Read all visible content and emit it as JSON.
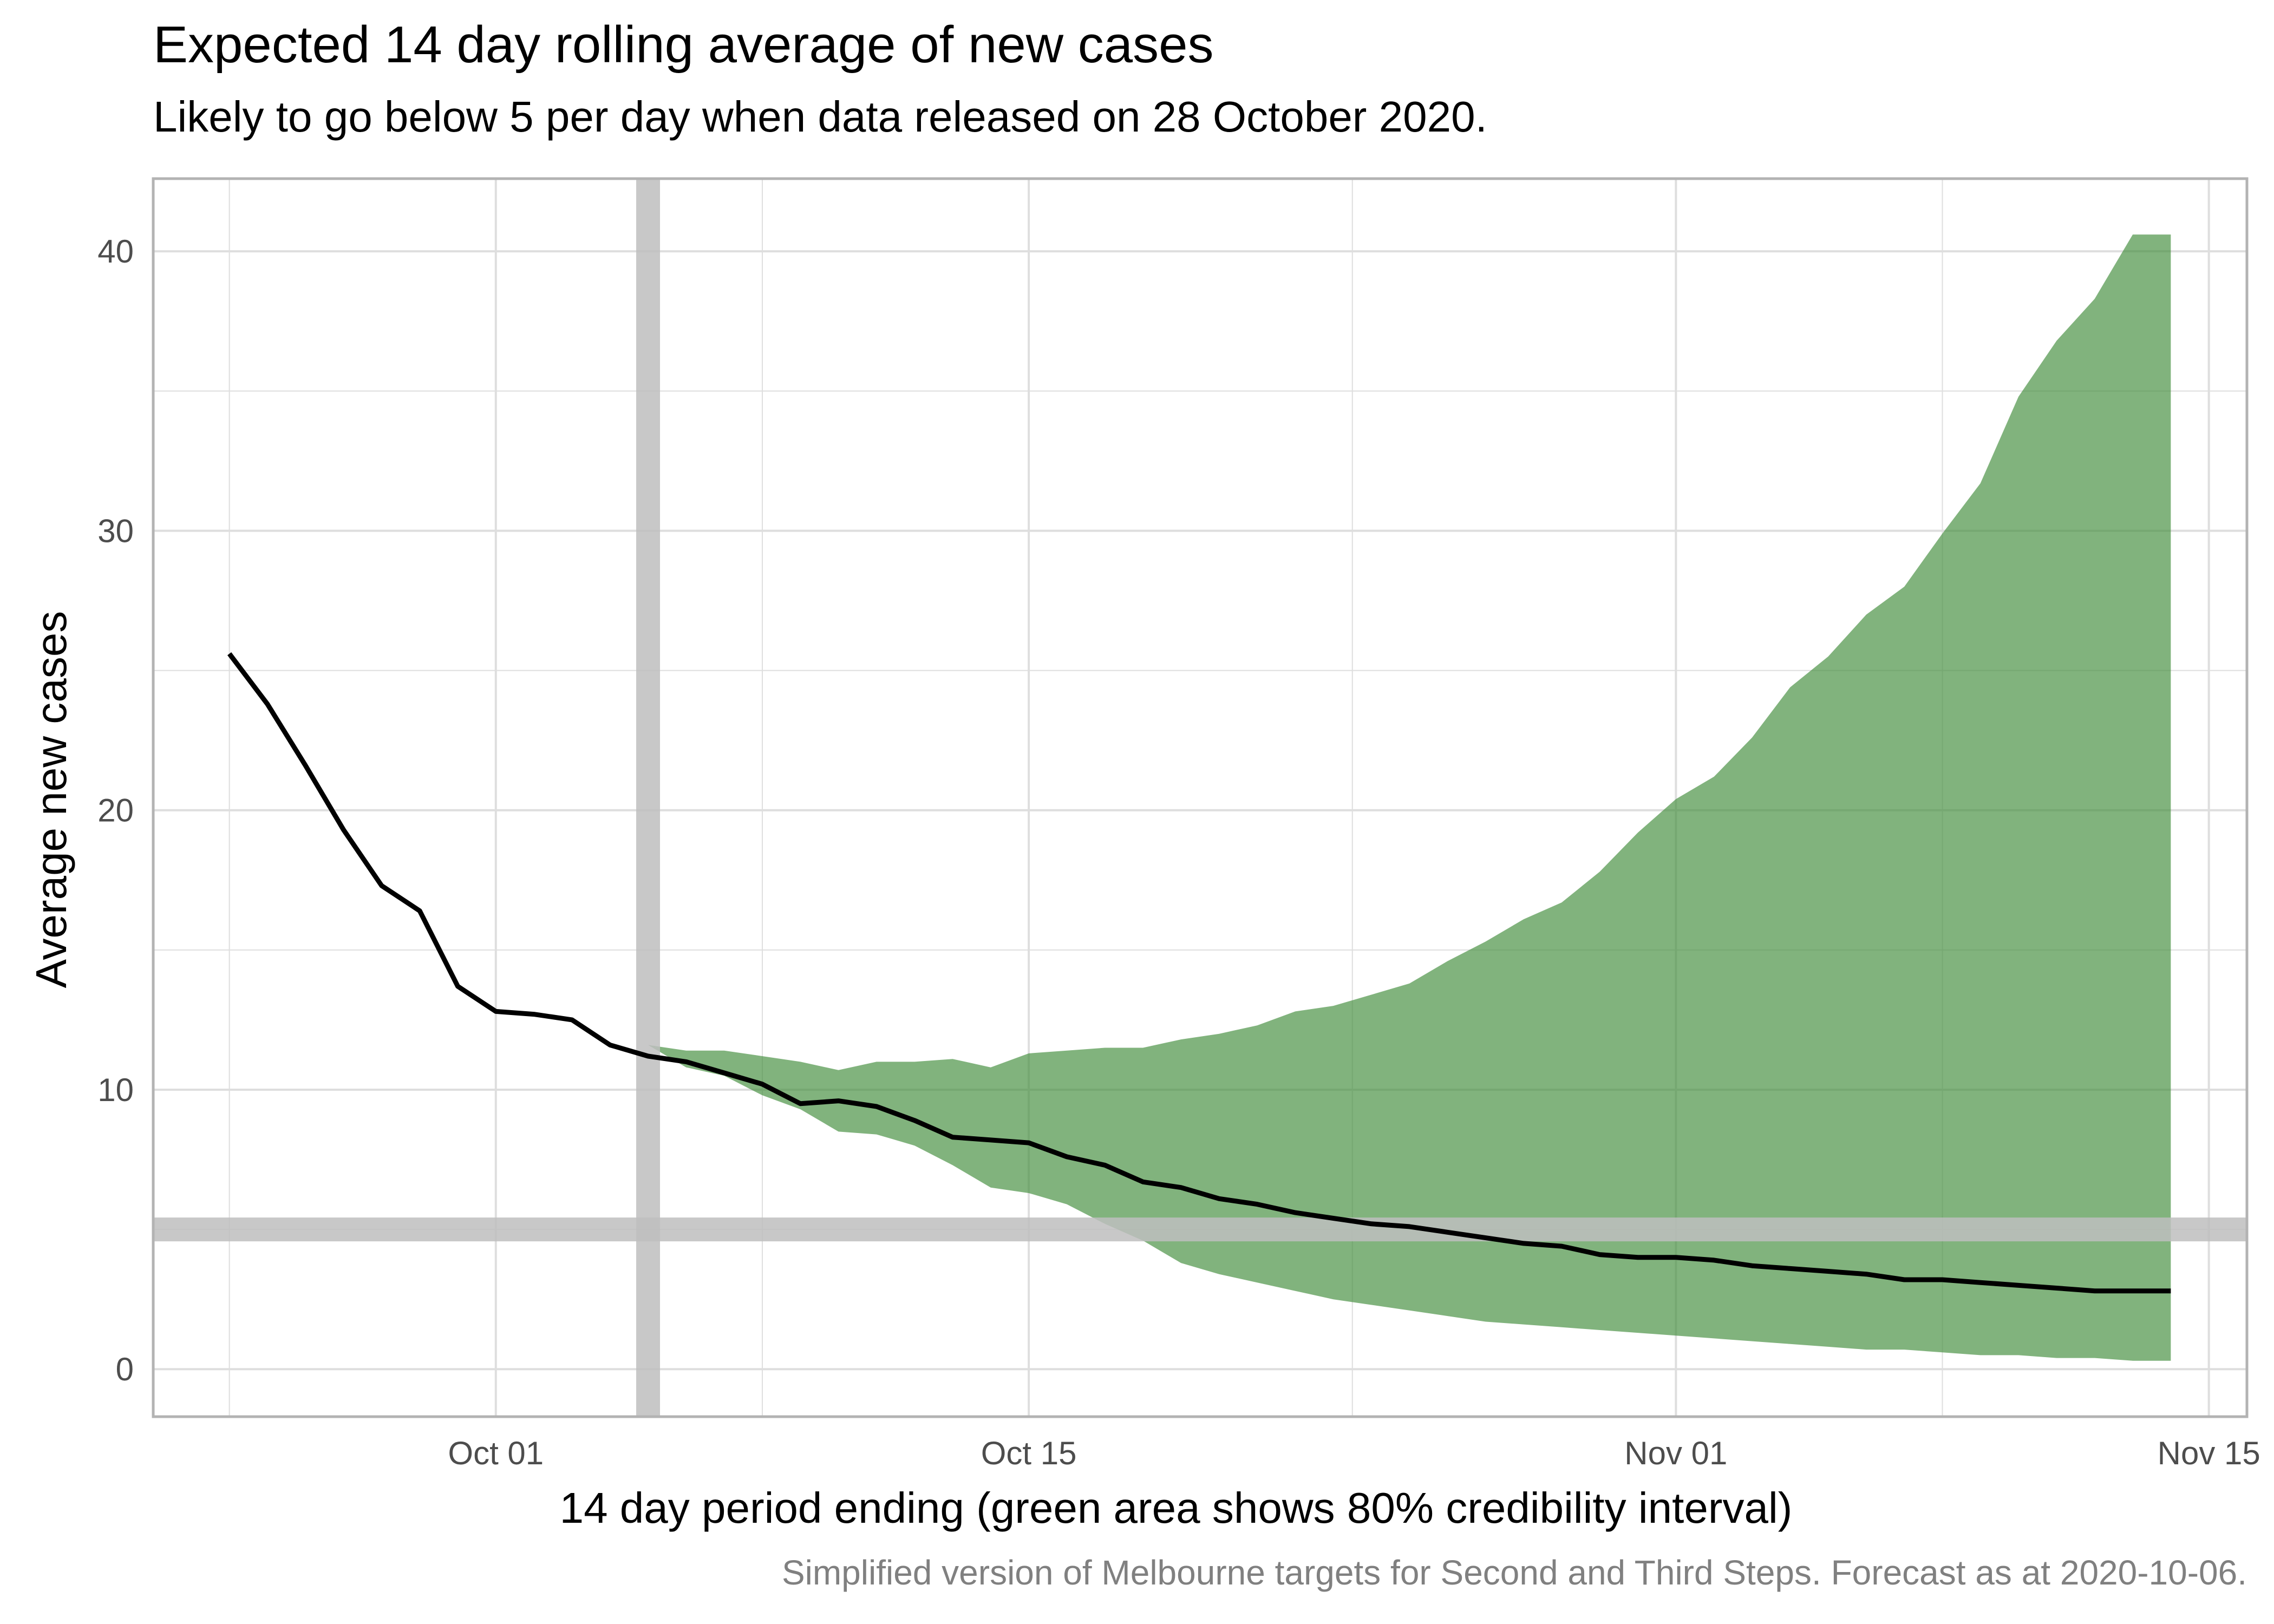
{
  "chart_data": {
    "type": "area",
    "title": "Expected 14 day rolling average of new cases",
    "subtitle": "Likely to go below 5 per day when data released on 28 October 2020.",
    "xlabel": "14 day period ending (green area shows 80% credibility interval)",
    "ylabel": "Average new cases",
    "caption": "Simplified version of Melbourne targets for Second and Third Steps. Forecast as at 2020-10-06.",
    "x_ticks": [
      "Oct 01",
      "Oct 15",
      "Nov 01",
      "Nov 15"
    ],
    "y_ticks": [
      "0",
      "10",
      "20",
      "30",
      "40"
    ],
    "xlim": [
      "2020-09-22",
      "2020-11-16"
    ],
    "ylim": [
      -1.7,
      42.6
    ],
    "grid": true,
    "colors": {
      "band": "#3d8b37",
      "line": "#000000",
      "reference": "#bebebe",
      "grid": "#dedede",
      "border": "#b3b3b3"
    },
    "reference_lines": {
      "x": "2020-10-05",
      "y": 5
    },
    "series": [
      {
        "type": "line",
        "x": [
          "2020-09-24",
          "2020-09-25",
          "2020-09-26",
          "2020-09-27",
          "2020-09-28",
          "2020-09-29",
          "2020-09-30",
          "2020-10-01",
          "2020-10-02",
          "2020-10-03",
          "2020-10-04",
          "2020-10-05",
          "2020-10-06",
          "2020-10-07",
          "2020-10-08",
          "2020-10-09",
          "2020-10-10",
          "2020-10-11",
          "2020-10-12",
          "2020-10-13",
          "2020-10-14",
          "2020-10-15",
          "2020-10-16",
          "2020-10-17",
          "2020-10-18",
          "2020-10-19",
          "2020-10-20",
          "2020-10-21",
          "2020-10-22",
          "2020-10-23",
          "2020-10-24",
          "2020-10-25",
          "2020-10-26",
          "2020-10-27",
          "2020-10-28",
          "2020-10-29",
          "2020-10-30",
          "2020-10-31",
          "2020-11-01",
          "2020-11-02",
          "2020-11-03",
          "2020-11-04",
          "2020-11-05",
          "2020-11-06",
          "2020-11-07",
          "2020-11-08",
          "2020-11-09",
          "2020-11-10",
          "2020-11-11",
          "2020-11-12",
          "2020-11-13",
          "2020-11-14"
        ],
        "values": [
          25.6,
          23.8,
          21.6,
          19.3,
          17.3,
          16.4,
          13.7,
          12.8,
          12.7,
          12.5,
          11.6,
          11.2,
          11.0,
          10.6,
          10.2,
          9.5,
          9.6,
          9.4,
          8.9,
          8.3,
          8.2,
          8.1,
          7.6,
          7.3,
          6.7,
          6.5,
          6.1,
          5.9,
          5.6,
          5.4,
          5.2,
          5.1,
          4.9,
          4.7,
          4.5,
          4.4,
          4.1,
          4.0,
          4.0,
          3.9,
          3.7,
          3.6,
          3.5,
          3.4,
          3.2,
          3.2,
          3.1,
          3.0,
          2.9,
          2.8,
          2.8,
          2.8
        ]
      },
      {
        "type": "band",
        "x": [
          "2020-10-05",
          "2020-10-06",
          "2020-10-07",
          "2020-10-08",
          "2020-10-09",
          "2020-10-10",
          "2020-10-11",
          "2020-10-12",
          "2020-10-13",
          "2020-10-14",
          "2020-10-15",
          "2020-10-16",
          "2020-10-17",
          "2020-10-18",
          "2020-10-19",
          "2020-10-20",
          "2020-10-21",
          "2020-10-22",
          "2020-10-23",
          "2020-10-24",
          "2020-10-25",
          "2020-10-26",
          "2020-10-27",
          "2020-10-28",
          "2020-10-29",
          "2020-10-30",
          "2020-10-31",
          "2020-11-01",
          "2020-11-02",
          "2020-11-03",
          "2020-11-04",
          "2020-11-05",
          "2020-11-06",
          "2020-11-07",
          "2020-11-08",
          "2020-11-09",
          "2020-11-10",
          "2020-11-11",
          "2020-11-12",
          "2020-11-13",
          "2020-11-14"
        ],
        "lower": [
          11.6,
          10.8,
          10.5,
          9.8,
          9.3,
          8.5,
          8.4,
          8.0,
          7.3,
          6.5,
          6.3,
          5.9,
          5.2,
          4.6,
          3.8,
          3.4,
          3.1,
          2.8,
          2.5,
          2.3,
          2.1,
          1.9,
          1.7,
          1.6,
          1.5,
          1.4,
          1.3,
          1.2,
          1.1,
          1.0,
          0.9,
          0.8,
          0.7,
          0.7,
          0.6,
          0.5,
          0.5,
          0.4,
          0.4,
          0.3,
          0.3
        ],
        "upper": [
          11.6,
          11.4,
          11.4,
          11.2,
          11.0,
          10.7,
          11.0,
          11.0,
          11.1,
          10.8,
          11.3,
          11.4,
          11.5,
          11.5,
          11.8,
          12.0,
          12.3,
          12.8,
          13.0,
          13.4,
          13.8,
          14.6,
          15.3,
          16.1,
          16.7,
          17.8,
          19.2,
          20.4,
          21.2,
          22.6,
          24.4,
          25.5,
          27.0,
          28.0,
          29.9,
          31.7,
          34.8,
          36.8,
          38.3,
          40.6,
          40.6
        ]
      }
    ]
  }
}
